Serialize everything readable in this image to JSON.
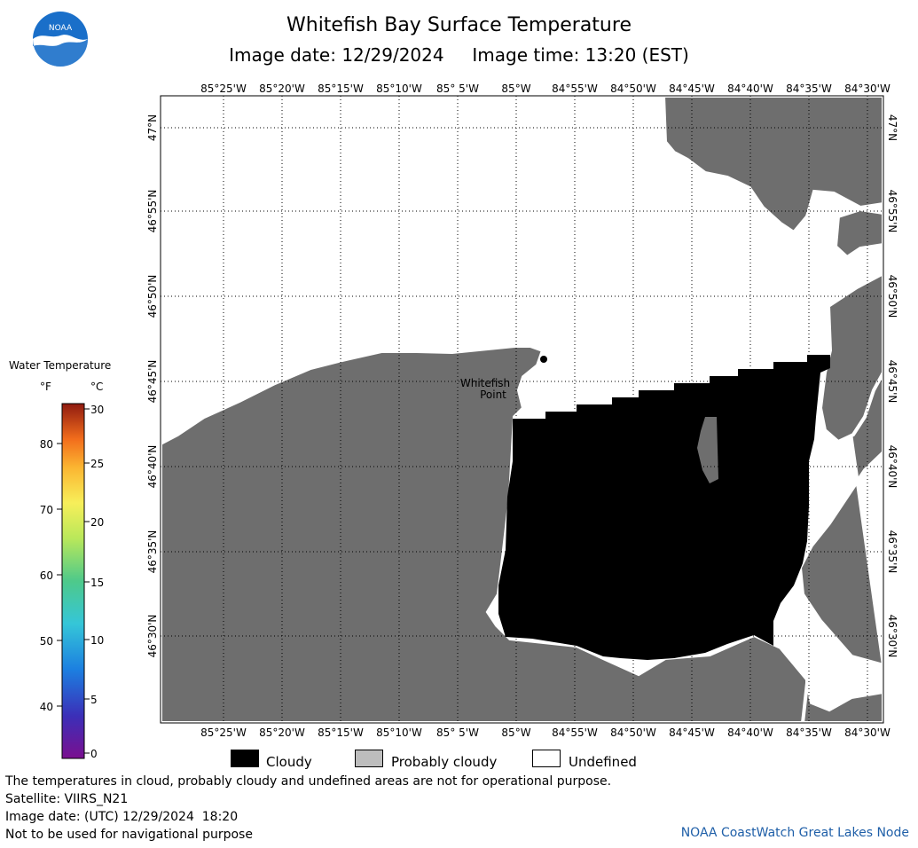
{
  "header": {
    "title": "Whitefish Bay Surface Temperature",
    "image_date": "Image date: 12/29/2024",
    "image_time": "Image time: 13:20 (EST)",
    "logo_text": "NOAA"
  },
  "map": {
    "lon_labels": [
      "85°25'W",
      "85°20'W",
      "85°15'W",
      "85°10'W",
      "85° 5'W",
      "85°W",
      "84°55'W",
      "84°50'W",
      "84°45'W",
      "84°40'W",
      "84°35'W",
      "84°30'W"
    ],
    "lat_labels": [
      "47°N",
      "46°55'N",
      "46°50'N",
      "46°45'N",
      "46°40'N",
      "46°35'N",
      "46°30'N"
    ],
    "place_label": [
      "Whitefish",
      "Point"
    ],
    "colors": {
      "land": "#6e6e6e",
      "cloudy": "#000000",
      "probably_cloudy": "#bdbdbd",
      "undefined": "#ffffff"
    }
  },
  "colorbar": {
    "title": "Water Temperature",
    "unit_f": "°F",
    "unit_c": "°C",
    "f_ticks": [
      "80",
      "70",
      "60",
      "50",
      "40"
    ],
    "c_ticks": [
      "30",
      "25",
      "20",
      "15",
      "10",
      "5",
      "0"
    ]
  },
  "legend": {
    "items": [
      {
        "label": "Cloudy",
        "color": "#000000"
      },
      {
        "label": "Probably cloudy",
        "color": "#bdbdbd"
      },
      {
        "label": "Undefined",
        "color": "#ffffff"
      }
    ]
  },
  "footer": {
    "lines": [
      "The temperatures in cloud, probably cloudy and undefined areas are not for operational purpose.",
      "Satellite: VIIRS_N21",
      "Image date: (UTC) 12/29/2024  18:20",
      "Not to be used for navigational purpose"
    ],
    "credit": "NOAA CoastWatch Great Lakes Node"
  }
}
